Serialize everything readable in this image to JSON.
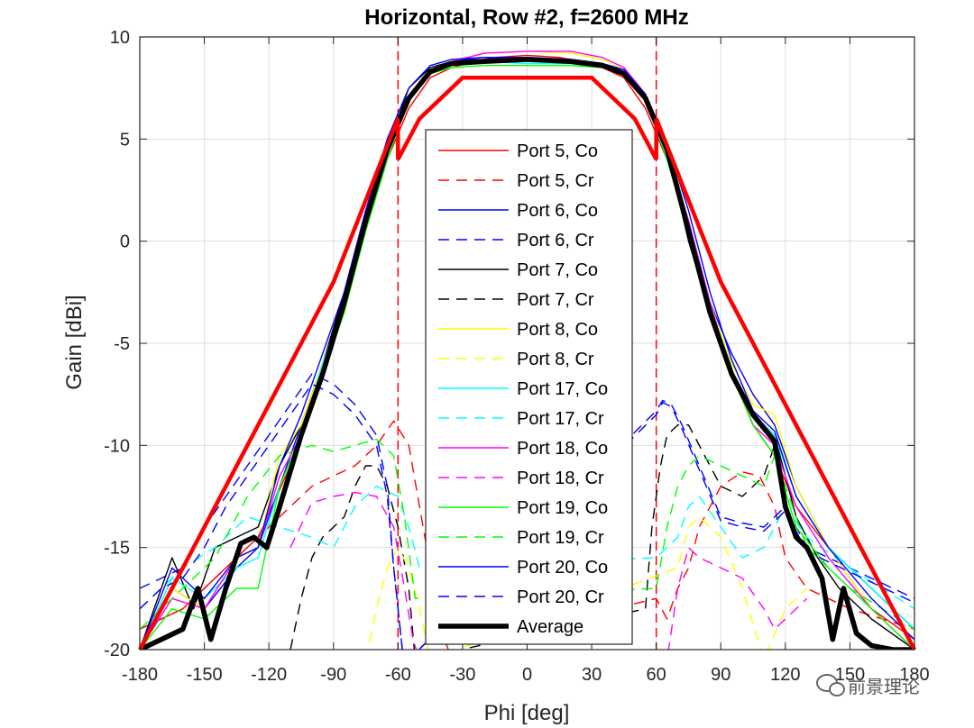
{
  "chart_data": {
    "type": "line",
    "title": "Horizontal, Row #2, f=2600 MHz",
    "xlabel": "Phi [deg]",
    "ylabel": "Gain [dBi]",
    "xlim": [
      -180,
      180
    ],
    "ylim": [
      -20,
      10
    ],
    "xticks": [
      -180,
      -150,
      -120,
      -90,
      -60,
      -30,
      0,
      30,
      60,
      90,
      120,
      150,
      180
    ],
    "yticks": [
      -20,
      -15,
      -10,
      -5,
      0,
      5,
      10
    ],
    "grid": true,
    "legend_position": "center",
    "colors": {
      "red": "#ff0000",
      "blue": "#0000ff",
      "black": "#000000",
      "yellow": "#ffff00",
      "cyan": "#00ffff",
      "magenta": "#ff00ff",
      "green": "#00ff00"
    },
    "reference_lines": [
      {
        "x": -60,
        "style": "dashed",
        "color": "#ff0000"
      },
      {
        "x": 60,
        "style": "dashed",
        "color": "#ff0000"
      }
    ],
    "mask": {
      "color": "#ff0000",
      "points": [
        [
          -180,
          -20
        ],
        [
          -90,
          -2
        ],
        [
          -60,
          6
        ],
        [
          -60,
          4
        ],
        [
          -50,
          6
        ],
        [
          -30,
          8
        ],
        [
          30,
          8
        ],
        [
          50,
          6
        ],
        [
          60,
          4
        ],
        [
          60,
          6
        ],
        [
          90,
          -2
        ],
        [
          180,
          -20
        ]
      ]
    },
    "series": [
      {
        "name": "Port 5, Co",
        "color": "#ff0000",
        "style": "solid",
        "width": 1,
        "x": [
          -180,
          -160,
          -140,
          -125,
          -110,
          -95,
          -85,
          -75,
          -65,
          -55,
          -45,
          -35,
          -25,
          -15,
          0,
          15,
          25,
          35,
          45,
          55,
          65,
          75,
          85,
          95,
          105,
          115,
          125,
          140,
          160,
          180
        ],
        "y": [
          -19,
          -18,
          -16,
          -14.5,
          -11,
          -6,
          -3,
          0.5,
          4,
          6.5,
          8,
          8.5,
          8.8,
          9,
          9.1,
          9,
          8.8,
          8.5,
          8,
          6.5,
          4,
          0.5,
          -3,
          -6.5,
          -9,
          -10.5,
          -13,
          -15,
          -18,
          -19.5
        ]
      },
      {
        "name": "Port 5, Cr",
        "color": "#ff0000",
        "style": "dashed",
        "width": 1,
        "x": [
          -180,
          -160,
          -140,
          -120,
          -110,
          -100,
          -90,
          -80,
          -70,
          -62,
          -55,
          -50,
          -45,
          -40,
          -35,
          -30,
          -25,
          -20,
          60,
          65,
          70,
          75,
          80,
          90,
          100,
          108,
          115,
          120,
          130,
          150,
          180
        ],
        "y": [
          -19,
          -18,
          -16,
          -14,
          -13,
          -12,
          -11.5,
          -11,
          -10,
          -8.8,
          -10,
          -13,
          -16,
          -19,
          -20.5,
          -20.5,
          -20,
          -19.5,
          -17.5,
          -18.5,
          -17,
          -16,
          -14,
          -12,
          -11.3,
          -11.5,
          -13,
          -15.5,
          -17,
          -18,
          -19
        ]
      },
      {
        "name": "Port 6, Co",
        "color": "#0000ff",
        "style": "solid",
        "width": 1,
        "x": [
          -180,
          -165,
          -150,
          -135,
          -125,
          -115,
          -105,
          -95,
          -85,
          -75,
          -65,
          -55,
          -45,
          -35,
          -20,
          0,
          20,
          35,
          45,
          55,
          65,
          75,
          85,
          95,
          105,
          115,
          125,
          140,
          160,
          180
        ],
        "y": [
          -20,
          -17,
          -18,
          -16,
          -15,
          -12,
          -9,
          -6,
          -3,
          1,
          4.5,
          7,
          8.3,
          8.8,
          9,
          9,
          8.9,
          8.7,
          8.3,
          7,
          4.5,
          1,
          -3,
          -5.5,
          -7.5,
          -9,
          -12,
          -15,
          -17,
          -19
        ]
      },
      {
        "name": "Port 6, Cr",
        "color": "#0000ff",
        "style": "dashed",
        "width": 1,
        "x": [
          -180,
          -170,
          -160,
          -150,
          -140,
          -130,
          -120,
          -110,
          -100,
          -90,
          -80,
          -70,
          -65,
          -62,
          -58,
          -55,
          60,
          63,
          67,
          72,
          80,
          90,
          100,
          110,
          120,
          130,
          150,
          170,
          180
        ],
        "y": [
          -17,
          -16.5,
          -16,
          -14,
          -12.5,
          -11,
          -9.5,
          -8,
          -6.5,
          -7,
          -8,
          -9.5,
          -12,
          -16,
          -20,
          -20.5,
          -8.3,
          -7.8,
          -8,
          -9,
          -11,
          -13.5,
          -13.8,
          -14,
          -13,
          -15,
          -16,
          -17,
          -17.5
        ]
      },
      {
        "name": "Port 7, Co",
        "color": "#000000",
        "style": "solid",
        "width": 1,
        "x": [
          -180,
          -165,
          -155,
          -145,
          -135,
          -125,
          -115,
          -105,
          -95,
          -85,
          -75,
          -65,
          -55,
          -45,
          -35,
          -20,
          0,
          20,
          35,
          45,
          55,
          65,
          75,
          85,
          95,
          105,
          115,
          125,
          135,
          145,
          160,
          180
        ],
        "y": [
          -20,
          -15.5,
          -18,
          -15,
          -14.5,
          -14,
          -11,
          -9,
          -6,
          -2.5,
          1.5,
          4.5,
          7.5,
          8.5,
          8.8,
          8.9,
          8.9,
          8.9,
          8.7,
          8.4,
          7.2,
          4.5,
          0,
          -3.5,
          -6.5,
          -8.5,
          -9.5,
          -13.5,
          -15.5,
          -17,
          -18.5,
          -20
        ]
      },
      {
        "name": "Port 7, Cr",
        "color": "#000000",
        "style": "dashed",
        "width": 1,
        "x": [
          -110,
          -105,
          -100,
          -95,
          -90,
          -85,
          -80,
          -75,
          -70,
          -65,
          -60,
          -55,
          -52,
          55,
          58,
          62,
          65,
          70,
          75,
          80,
          90,
          100,
          110,
          115
        ],
        "y": [
          -20,
          -17.5,
          -15.5,
          -14.5,
          -14,
          -13.5,
          -12,
          -11,
          -11,
          -12,
          -14,
          -17,
          -20.5,
          -18,
          -14,
          -11,
          -9.5,
          -9,
          -9,
          -10,
          -12,
          -12.5,
          -11.5,
          -10
        ]
      },
      {
        "name": "Port 8, Co",
        "color": "#ffff00",
        "style": "solid",
        "width": 1,
        "x": [
          -180,
          -165,
          -150,
          -135,
          -125,
          -115,
          -105,
          -95,
          -85,
          -75,
          -65,
          -55,
          -45,
          -35,
          -20,
          0,
          20,
          35,
          45,
          55,
          65,
          75,
          85,
          95,
          105,
          115,
          125,
          140,
          160,
          180
        ],
        "y": [
          -20,
          -17,
          -18,
          -15.5,
          -15,
          -10.5,
          -9,
          -6,
          -3,
          1,
          4.5,
          7,
          8.3,
          8.8,
          9.2,
          9.3,
          9.2,
          8.9,
          8.4,
          7.2,
          4.5,
          1,
          -3,
          -6,
          -8,
          -8.5,
          -12,
          -15,
          -18,
          -20
        ]
      },
      {
        "name": "Port 8, Cr",
        "color": "#ffff00",
        "style": "dashed",
        "width": 1,
        "x": [
          -75,
          -70,
          -65,
          -60,
          -55,
          -50,
          -45,
          70,
          75,
          80,
          90,
          100,
          110,
          120,
          130
        ],
        "y": [
          -20.5,
          -18,
          -16,
          -15,
          -16,
          -18,
          -20.5,
          -16,
          -14,
          -13.5,
          -14.5,
          -17,
          -20.5,
          -18,
          -17
        ]
      },
      {
        "name": "Port 17, Co",
        "color": "#00ffff",
        "style": "solid",
        "width": 1,
        "x": [
          -180,
          -165,
          -150,
          -135,
          -125,
          -115,
          -105,
          -95,
          -85,
          -75,
          -65,
          -55,
          -45,
          -35,
          -20,
          0,
          20,
          35,
          45,
          55,
          65,
          75,
          85,
          95,
          105,
          115,
          125,
          140,
          160,
          180
        ],
        "y": [
          -20,
          -16.5,
          -17.5,
          -16,
          -15.5,
          -12,
          -9.5,
          -6,
          -3,
          1,
          4.5,
          7,
          8.3,
          8.7,
          8.8,
          8.7,
          8.7,
          8.6,
          8.2,
          7,
          4.5,
          1,
          -3,
          -6.5,
          -8.5,
          -9.5,
          -12.5,
          -15,
          -17,
          -19
        ]
      },
      {
        "name": "Port 17, Cr",
        "color": "#00ffff",
        "style": "dashed",
        "width": 1,
        "x": [
          -180,
          -170,
          -160,
          -145,
          -130,
          -115,
          -100,
          -90,
          -80,
          -70,
          -60,
          -55,
          -50,
          60,
          65,
          70,
          75,
          80,
          90,
          100,
          110,
          120,
          130,
          150,
          180
        ],
        "y": [
          -18,
          -17,
          -16,
          -15,
          -13.5,
          -14,
          -14.5,
          -15,
          -13,
          -12,
          -12.5,
          -14,
          -16,
          -15.5,
          -15,
          -14.5,
          -13,
          -12.5,
          -14,
          -15.5,
          -15,
          -13,
          -14.5,
          -16,
          -18
        ]
      },
      {
        "name": "Port 18, Co",
        "color": "#ff00ff",
        "style": "solid",
        "width": 1,
        "x": [
          -180,
          -165,
          -150,
          -135,
          -125,
          -115,
          -105,
          -95,
          -85,
          -75,
          -65,
          -55,
          -45,
          -35,
          -20,
          0,
          20,
          35,
          45,
          55,
          65,
          75,
          85,
          95,
          105,
          115,
          125,
          140,
          160,
          180
        ],
        "y": [
          -20,
          -17.5,
          -18,
          -15.5,
          -15,
          -11.5,
          -9.5,
          -6.5,
          -3,
          1,
          4.5,
          7,
          8.3,
          8.8,
          9.2,
          9.3,
          9.3,
          9,
          8.5,
          7.2,
          4.5,
          1,
          -3,
          -6.5,
          -9,
          -10,
          -13,
          -15.5,
          -18,
          -20
        ]
      },
      {
        "name": "Port 18, Cr",
        "color": "#ff00ff",
        "style": "dashed",
        "width": 1,
        "x": [
          -110,
          -100,
          -90,
          -80,
          -70,
          -62,
          -57,
          -53,
          -50,
          65,
          70,
          75,
          80,
          90,
          100,
          110,
          115,
          120,
          130
        ],
        "y": [
          -15,
          -12.8,
          -12.5,
          -12.3,
          -12.5,
          -14,
          -17,
          -19.5,
          -20.5,
          -20.5,
          -17,
          -15,
          -15.5,
          -16,
          -16.5,
          -18,
          -19,
          -18.5,
          -17.5
        ]
      },
      {
        "name": "Port 19, Co",
        "color": "#00ff00",
        "style": "solid",
        "width": 1,
        "x": [
          -180,
          -165,
          -150,
          -135,
          -125,
          -115,
          -105,
          -95,
          -85,
          -75,
          -65,
          -55,
          -45,
          -35,
          -20,
          0,
          20,
          35,
          45,
          55,
          65,
          75,
          85,
          95,
          105,
          115,
          125,
          140,
          160,
          180
        ],
        "y": [
          -20,
          -18,
          -18.5,
          -17,
          -17,
          -12,
          -9.5,
          -6.5,
          -3.5,
          0.5,
          4,
          7,
          8.2,
          8.5,
          8.6,
          8.6,
          8.6,
          8.5,
          8.2,
          7,
          4,
          0.5,
          -3.5,
          -6.5,
          -9,
          -10.5,
          -14,
          -16,
          -18,
          -20
        ]
      },
      {
        "name": "Port 19, Cr",
        "color": "#00ff00",
        "style": "dashed",
        "width": 1,
        "x": [
          -180,
          -170,
          -160,
          -145,
          -130,
          -115,
          -100,
          -90,
          -80,
          -70,
          -62,
          -57,
          -52,
          60,
          65,
          70,
          75,
          80,
          90,
          100,
          110,
          115,
          120,
          130,
          150,
          180
        ],
        "y": [
          -19,
          -18,
          -17,
          -15.5,
          -12.5,
          -10.5,
          -10,
          -10.3,
          -10,
          -9.7,
          -10.5,
          -13.5,
          -17.5,
          -17,
          -14,
          -12,
          -11,
          -10.5,
          -11,
          -11.5,
          -12,
          -10.5,
          -12,
          -15,
          -17,
          -19
        ]
      },
      {
        "name": "Port 20, Co",
        "color": "#0000ff",
        "style": "solid",
        "width": 1,
        "x": [
          -180,
          -165,
          -150,
          -135,
          -125,
          -115,
          -105,
          -95,
          -85,
          -75,
          -65,
          -55,
          -45,
          -35,
          -20,
          0,
          20,
          35,
          45,
          55,
          65,
          75,
          85,
          95,
          105,
          115,
          125,
          140,
          160,
          180
        ],
        "y": [
          -20,
          -16,
          -17.5,
          -15.5,
          -15,
          -11,
          -8.5,
          -5.5,
          -2.5,
          1.5,
          5,
          7.5,
          8.6,
          8.9,
          9,
          8.9,
          8.9,
          8.7,
          8.4,
          7.2,
          4.8,
          1.5,
          -2.5,
          -5.8,
          -8.3,
          -9.3,
          -12.5,
          -15,
          -17.5,
          -19.5
        ]
      },
      {
        "name": "Port 20, Cr",
        "color": "#0000ff",
        "style": "dashed",
        "width": 1,
        "x": [
          -180,
          -170,
          -160,
          -150,
          -140,
          -130,
          -120,
          -110,
          -100,
          -90,
          -80,
          -70,
          -65,
          -62,
          -58,
          -55,
          60,
          63,
          67,
          72,
          80,
          90,
          100,
          110,
          120,
          130,
          150,
          170,
          180
        ],
        "y": [
          -18,
          -17,
          -16.5,
          -15,
          -13,
          -11.5,
          -10,
          -8.5,
          -7,
          -7.5,
          -8.5,
          -10,
          -12.5,
          -16,
          -20,
          -20.5,
          -8.5,
          -7.9,
          -8.1,
          -9.2,
          -11.2,
          -13.7,
          -14,
          -14.2,
          -13.2,
          -15.2,
          -16.2,
          -17.2,
          -17.7
        ]
      },
      {
        "name": "Average",
        "color": "#000000",
        "style": "solid",
        "width": 4,
        "x": [
          -180,
          -170,
          -160,
          -153,
          -147,
          -140,
          -133,
          -127,
          -121,
          -115,
          -105,
          -95,
          -85,
          -75,
          -65,
          -55,
          -45,
          -35,
          -20,
          0,
          20,
          35,
          45,
          55,
          65,
          75,
          85,
          95,
          105,
          115,
          120,
          125,
          130,
          137,
          142,
          147,
          153,
          160,
          170,
          180
        ],
        "y": [
          -20,
          -19.5,
          -19,
          -17,
          -19.5,
          -17,
          -14.8,
          -14.5,
          -15,
          -13,
          -9.5,
          -6.5,
          -3,
          1,
          4.5,
          7,
          8.3,
          8.7,
          8.8,
          8.9,
          8.8,
          8.6,
          8.2,
          7,
          4.5,
          0.5,
          -3.5,
          -6.5,
          -8.5,
          -9.8,
          -13,
          -14.5,
          -15,
          -16.5,
          -19.5,
          -17,
          -19.2,
          -19.8,
          -20,
          -20
        ]
      }
    ]
  },
  "watermark": {
    "text": "前景理论",
    "icon": "wechat-icon"
  }
}
